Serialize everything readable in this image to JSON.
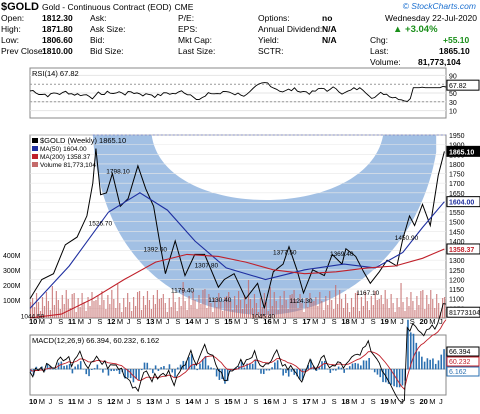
{
  "header": {
    "symbol": "$GOLD",
    "name": "Gold - Continuous Contract (EOD)",
    "exchange": "CME",
    "site": "© StockCharts.com",
    "date": "Wednesday  22-Jul-2020",
    "rows": [
      {
        "l1": "Open:",
        "v1": "1812.30",
        "l2": "Ask:",
        "v2": "",
        "l3": "P/E:",
        "v3": "",
        "l4": "Options:",
        "v4": "no"
      },
      {
        "l1": "High:",
        "v1": "1871.80",
        "l2": "Ask Size:",
        "v2": "",
        "l3": "EPS:",
        "v3": "",
        "l4": "Annual Dividend:",
        "v4": "N/A"
      },
      {
        "l1": "Low:",
        "v1": "1806.60",
        "l2": "Bid:",
        "v2": "",
        "l3": "Mkt Cap:",
        "v3": "",
        "l4": "Yield:",
        "v4": "N/A"
      },
      {
        "l1": "Prev Close:",
        "v1": "1810.00",
        "l2": "Bid Size:",
        "v2": "",
        "l3": "Last Size:",
        "v3": "",
        "l4": "SCTR:",
        "v4": ""
      }
    ],
    "pct_change": "+3.04%",
    "chg_label": "Chg:",
    "chg_value": "+55.10",
    "last_label": "Last:",
    "last_value": "1865.10",
    "volume_label": "Volume:",
    "volume_value": "81,773,104",
    "up_color": "#1a8f1a"
  },
  "chart_data": [
    {
      "type": "line",
      "title": "RSI(14) 67.82",
      "series": [
        {
          "name": "RSI(14)",
          "last": 67.82
        }
      ],
      "ylim": [
        0,
        100
      ],
      "yticks": [
        90,
        50,
        30,
        10
      ],
      "reference_lines": [
        70,
        30
      ],
      "last_label": "67.82"
    },
    {
      "type": "line",
      "title": "$GOLD (Weekly) 1865.10",
      "x_label_ticks": [
        "10",
        "M",
        "J",
        "S",
        "11",
        "M",
        "J",
        "S",
        "12",
        "M",
        "J",
        "S",
        "13",
        "M",
        "J",
        "S",
        "14",
        "M",
        "J",
        "S",
        "15",
        "M",
        "J",
        "S",
        "16",
        "M",
        "J",
        "S",
        "17",
        "M",
        "J",
        "S",
        "18",
        "M",
        "J",
        "S",
        "19",
        "M",
        "J",
        "S",
        "20",
        "M",
        "J"
      ],
      "xlim": [
        2010.0,
        2020.6
      ],
      "ylim": [
        1000,
        1950
      ],
      "yticks": [
        1950,
        1900,
        1850,
        1800,
        1750,
        1700,
        1650,
        1600,
        1550,
        1500,
        1450,
        1400,
        1350,
        1300,
        1250,
        1200,
        1150,
        1100,
        1050
      ],
      "series": [
        {
          "name": "$GOLD (Weekly) 1865.10",
          "color": "#000000",
          "x": [
            2010.0,
            2010.3,
            2010.6,
            2010.9,
            2011.2,
            2011.45,
            2011.6,
            2011.68,
            2011.8,
            2011.95,
            2012.1,
            2012.3,
            2012.5,
            2012.75,
            2012.95,
            2013.15,
            2013.3,
            2013.45,
            2013.7,
            2013.95,
            2014.2,
            2014.45,
            2014.8,
            2014.95,
            2015.2,
            2015.5,
            2015.8,
            2015.97,
            2016.2,
            2016.45,
            2016.6,
            2016.8,
            2016.97,
            2017.2,
            2017.5,
            2017.7,
            2017.95,
            2018.05,
            2018.3,
            2018.5,
            2018.67,
            2018.9,
            2019.1,
            2019.35,
            2019.5,
            2019.67,
            2019.8,
            2020.0,
            2020.2,
            2020.4,
            2020.56
          ],
          "y": [
            1100,
            1200,
            1230,
            1380,
            1420,
            1530,
            1700,
            1880,
            1640,
            1650,
            1750,
            1580,
            1620,
            1790,
            1670,
            1580,
            1400,
            1230,
            1400,
            1220,
            1330,
            1330,
            1160,
            1200,
            1230,
            1100,
            1180,
            1050,
            1240,
            1280,
            1370,
            1250,
            1130,
            1250,
            1220,
            1330,
            1280,
            1360,
            1320,
            1240,
            1180,
            1240,
            1300,
            1270,
            1410,
            1530,
            1480,
            1590,
            1480,
            1740,
            1865
          ]
        },
        {
          "name": "MA(50) 1604.00",
          "color": "#1f2fa0",
          "x": [
            2010.0,
            2011.0,
            2012.0,
            2012.8,
            2013.5,
            2014.2,
            2015.0,
            2016.0,
            2017.0,
            2018.0,
            2018.8,
            2019.5,
            2020.0,
            2020.56
          ],
          "y": [
            1050,
            1270,
            1550,
            1650,
            1560,
            1400,
            1260,
            1200,
            1250,
            1280,
            1260,
            1340,
            1470,
            1604
          ]
        },
        {
          "name": "MA(200) 1358.37",
          "color": "#c0202a",
          "x": [
            2010.0,
            2010.8,
            2011.6,
            2012.4,
            2013.2,
            2014.0,
            2014.8,
            2015.5,
            2016.2,
            2017.0,
            2017.8,
            2018.6,
            2019.3,
            2020.0,
            2020.56
          ],
          "y": [
            1000,
            1020,
            1100,
            1200,
            1290,
            1330,
            1320,
            1290,
            1250,
            1230,
            1240,
            1260,
            1270,
            1310,
            1358.37
          ]
        }
      ],
      "volume": {
        "name": "Volume 81,773,104",
        "color": "#c46a6a",
        "ticks": [
          "400M",
          "300M",
          "200M",
          "100M"
        ]
      },
      "annotations": [
        {
          "text": "1798.10",
          "x": 2012.3,
          "y": 1798.1
        },
        {
          "text": "1526.70",
          "x": 2011.85,
          "y": 1526.7
        },
        {
          "text": "1392.60",
          "x": 2013.25,
          "y": 1392.6
        },
        {
          "text": "1307.80",
          "x": 2014.55,
          "y": 1307.8
        },
        {
          "text": "1179.40",
          "x": 2013.95,
          "y": 1179.4
        },
        {
          "text": "1130.40",
          "x": 2014.9,
          "y": 1130.4
        },
        {
          "text": "1045.40",
          "x": 2016.0,
          "y": 1045.4
        },
        {
          "text": "1377.50",
          "x": 2016.55,
          "y": 1377.5
        },
        {
          "text": "1124.30",
          "x": 2016.97,
          "y": 1124.3
        },
        {
          "text": "1369.40",
          "x": 2018.0,
          "y": 1369.4
        },
        {
          "text": "1167.10",
          "x": 2018.67,
          "y": 1167.1
        },
        {
          "text": "1450.90",
          "x": 2019.65,
          "y": 1450.9
        },
        {
          "text": "1044.50",
          "x": 2010.12,
          "y": 1044.5
        }
      ],
      "price_tags": [
        {
          "text": "1865.10",
          "y": 1865.1,
          "bg": "#000000",
          "fg": "#ffffff"
        },
        {
          "text": "1604.00",
          "y": 1604.0,
          "bg": "#ffffff",
          "fg": "#1f2fa0"
        },
        {
          "text": "1358.37",
          "y": 1358.37,
          "bg": "#ffffff",
          "fg": "#c0202a"
        },
        {
          "text": "81773104",
          "y": 1030,
          "bg": "#ffffff",
          "fg": "#555555"
        }
      ],
      "resistance_level": 1950,
      "shaded_area": "cup"
    },
    {
      "type": "line",
      "title": "MACD(12,26,9) 66.394, 60.232, 6.162",
      "series": [
        {
          "name": "MACD(12,26,9)",
          "last": 66.394,
          "color": "#000000"
        },
        {
          "name": "signal",
          "last": 60.232,
          "color": "#c0202a"
        },
        {
          "name": "histogram",
          "last": 6.162,
          "color": "#2a6fb0"
        }
      ],
      "last_labels": [
        "66.394",
        "60.232",
        "6.162"
      ]
    }
  ]
}
